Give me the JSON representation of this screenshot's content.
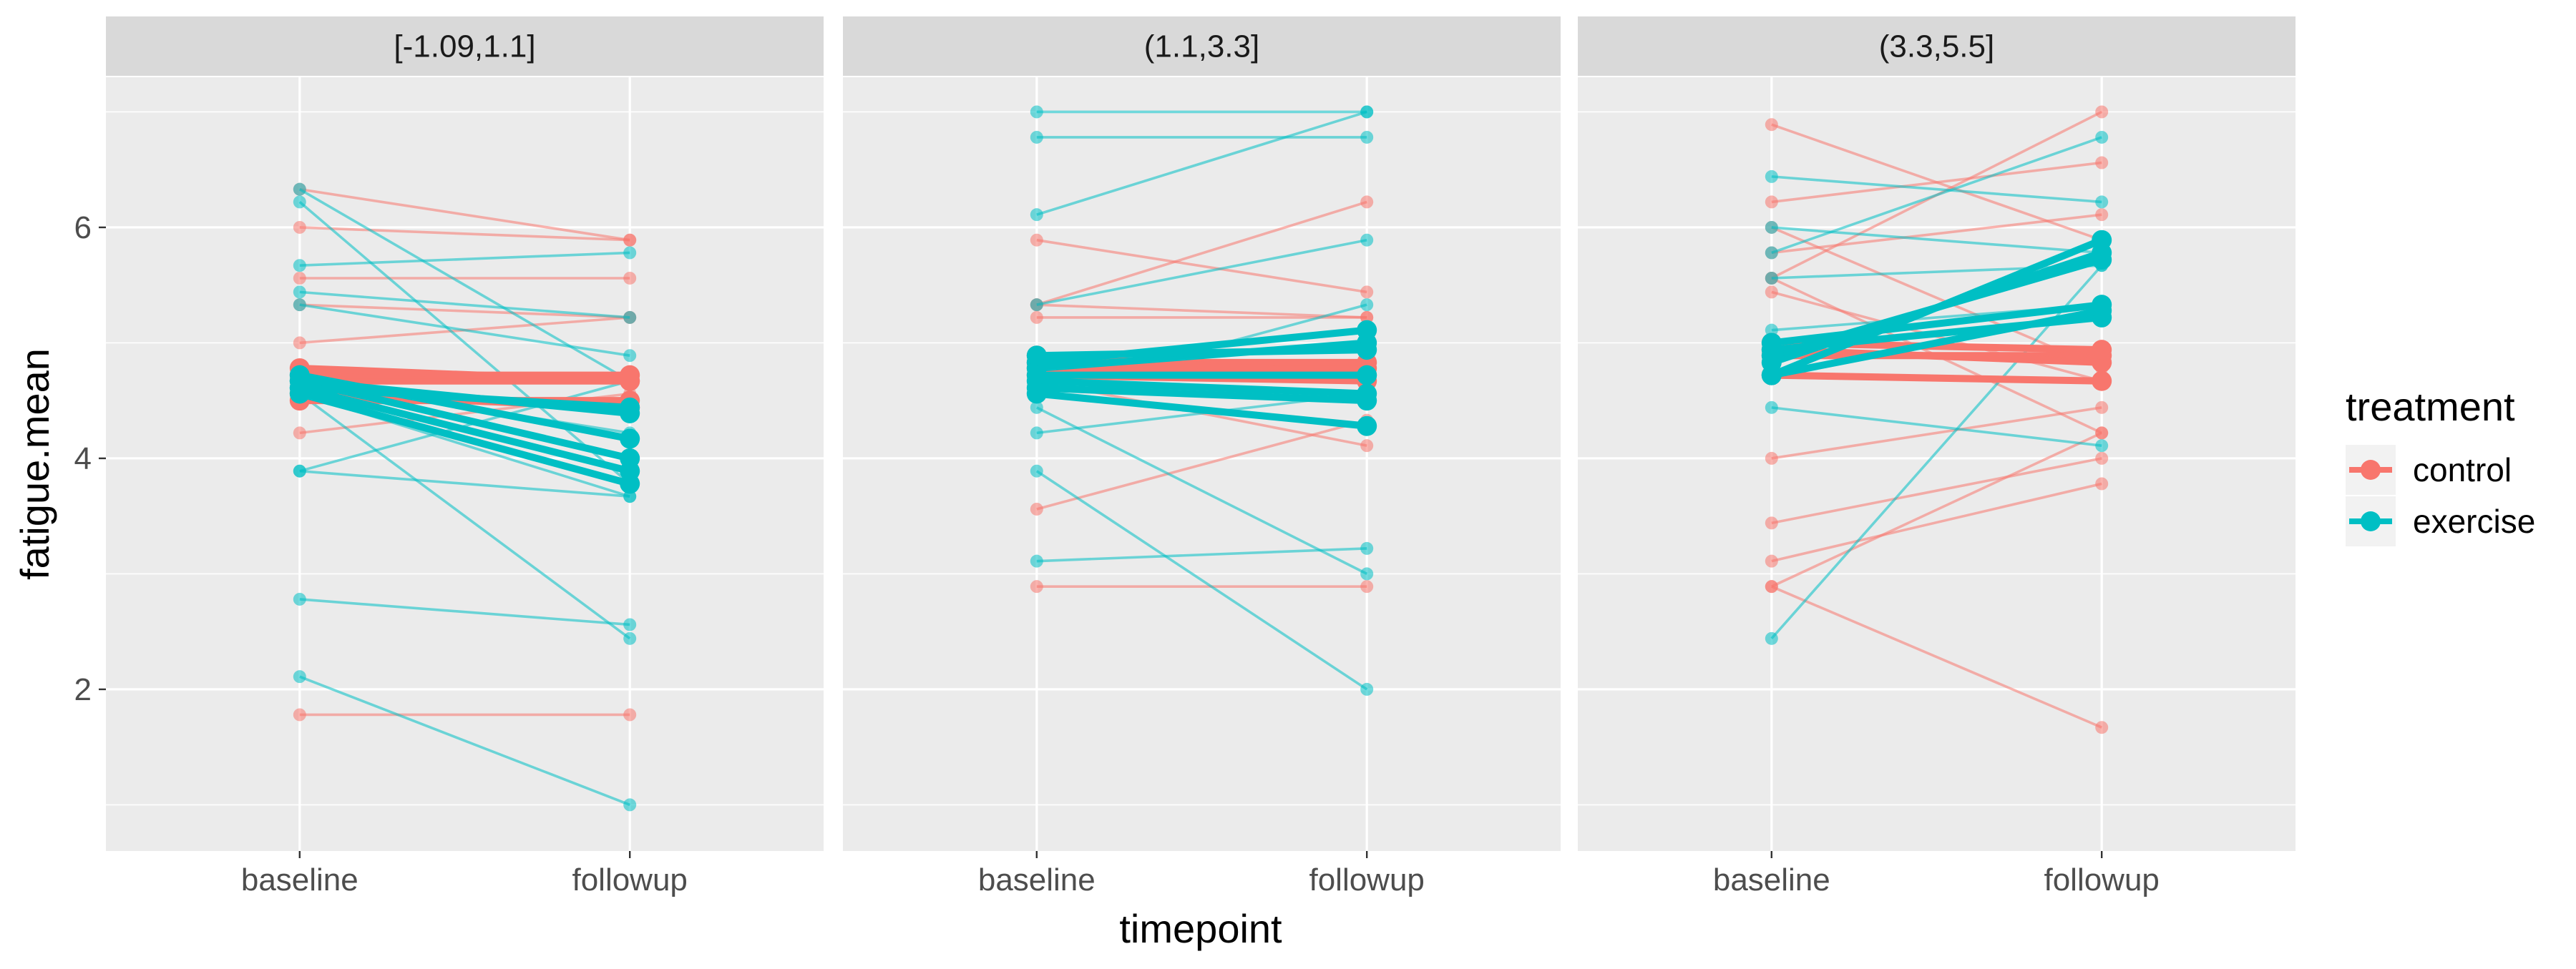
{
  "chart_data": {
    "type": "line",
    "xlabel": "timepoint",
    "ylabel": "fatigue.mean",
    "x_categories": [
      "baseline",
      "followup"
    ],
    "ylim": [
      0.6,
      7.3
    ],
    "y_ticks": [
      2,
      4,
      6
    ],
    "grid": true,
    "legend": {
      "title": "treatment",
      "position": "right",
      "entries": [
        {
          "name": "control",
          "color": "#F8766D"
        },
        {
          "name": "exercise",
          "color": "#00BFC4"
        }
      ]
    },
    "panels": [
      {
        "label": "[-1.09,1.1]",
        "individual": {
          "control": [
            [
              6.33,
              5.89
            ],
            [
              6.0,
              5.89
            ],
            [
              5.56,
              5.56
            ],
            [
              5.33,
              5.22
            ],
            [
              5.0,
              5.22
            ],
            [
              4.22,
              4.56
            ],
            [
              1.78,
              1.78
            ]
          ],
          "exercise": [
            [
              6.33,
              4.67
            ],
            [
              6.22,
              3.78
            ],
            [
              5.67,
              5.78
            ],
            [
              5.44,
              5.22
            ],
            [
              5.33,
              4.89
            ],
            [
              4.67,
              4.22
            ],
            [
              4.56,
              3.67
            ],
            [
              3.89,
              3.67
            ],
            [
              3.89,
              4.67
            ],
            [
              2.78,
              2.56
            ],
            [
              2.11,
              1.0
            ],
            [
              4.56,
              2.44
            ]
          ]
        },
        "summary": {
          "control": [
            [
              4.5,
              4.5
            ],
            [
              4.56,
              4.44
            ],
            [
              4.67,
              4.67
            ],
            [
              4.72,
              4.72
            ],
            [
              4.78,
              4.67
            ]
          ],
          "exercise": [
            [
              4.56,
              3.78
            ],
            [
              4.61,
              3.89
            ],
            [
              4.67,
              4.0
            ],
            [
              4.72,
              4.17
            ],
            [
              4.67,
              4.39
            ],
            [
              4.61,
              4.44
            ]
          ]
        }
      },
      {
        "label": "(1.1,3.3]",
        "individual": {
          "control": [
            [
              5.89,
              5.44
            ],
            [
              5.33,
              6.22
            ],
            [
              5.33,
              5.22
            ],
            [
              5.22,
              5.22
            ],
            [
              4.89,
              4.67
            ],
            [
              4.67,
              4.11
            ],
            [
              3.56,
              4.33
            ],
            [
              2.89,
              2.89
            ]
          ],
          "exercise": [
            [
              7.0,
              7.0
            ],
            [
              6.78,
              6.78
            ],
            [
              6.11,
              7.0
            ],
            [
              5.33,
              5.89
            ],
            [
              4.56,
              5.33
            ],
            [
              4.22,
              4.56
            ],
            [
              3.89,
              2.0
            ],
            [
              3.11,
              3.22
            ],
            [
              4.44,
              3.0
            ]
          ]
        },
        "summary": {
          "control": [
            [
              4.72,
              4.67
            ],
            [
              4.78,
              4.78
            ],
            [
              4.83,
              4.83
            ],
            [
              4.89,
              4.72
            ]
          ],
          "exercise": [
            [
              4.56,
              4.28
            ],
            [
              4.61,
              4.5
            ],
            [
              4.67,
              4.56
            ],
            [
              4.72,
              4.72
            ],
            [
              4.78,
              5.0
            ],
            [
              4.83,
              5.11
            ],
            [
              4.89,
              4.94
            ]
          ]
        }
      },
      {
        "label": "(3.3,5.5]",
        "individual": {
          "control": [
            [
              6.89,
              5.89
            ],
            [
              6.22,
              6.56
            ],
            [
              6.0,
              4.78
            ],
            [
              5.78,
              6.11
            ],
            [
              5.56,
              4.22
            ],
            [
              5.44,
              4.67
            ],
            [
              4.0,
              4.44
            ],
            [
              3.44,
              4.0
            ],
            [
              3.11,
              3.78
            ],
            [
              2.89,
              4.22
            ],
            [
              2.89,
              1.67
            ],
            [
              5.56,
              7.0
            ]
          ],
          "exercise": [
            [
              6.44,
              6.22
            ],
            [
              6.0,
              5.78
            ],
            [
              5.78,
              6.78
            ],
            [
              5.56,
              5.67
            ],
            [
              5.11,
              5.33
            ],
            [
              4.44,
              4.11
            ],
            [
              2.44,
              5.67
            ]
          ]
        },
        "summary": {
          "control": [
            [
              4.89,
              4.89
            ],
            [
              4.94,
              4.83
            ],
            [
              5.0,
              4.94
            ],
            [
              4.72,
              4.67
            ]
          ],
          "exercise": [
            [
              4.72,
              5.89
            ],
            [
              4.83,
              5.78
            ],
            [
              4.89,
              5.72
            ],
            [
              5.0,
              5.33
            ],
            [
              4.94,
              5.22
            ],
            [
              4.72,
              5.28
            ]
          ]
        }
      }
    ]
  }
}
